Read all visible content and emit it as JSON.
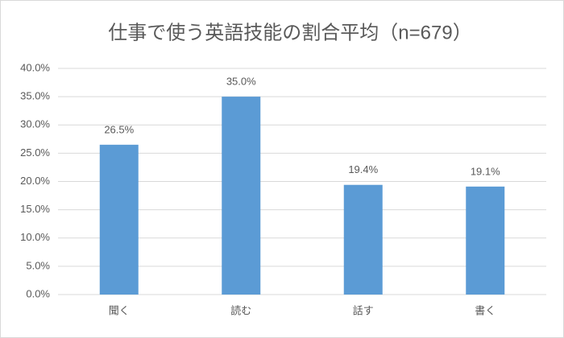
{
  "chart_data": {
    "type": "bar",
    "title": "仕事で使う英語技能の割合平均（n=679）",
    "categories": [
      "聞く",
      "読む",
      "話す",
      "書く"
    ],
    "values": [
      26.5,
      35.0,
      19.4,
      19.1
    ],
    "value_labels": [
      "26.5%",
      "35.0%",
      "19.4%",
      "19.1%"
    ],
    "color": "#5b9bd5",
    "ylim": [
      0,
      40
    ],
    "yticks": [
      {
        "value": 0,
        "label": "0.0%"
      },
      {
        "value": 5,
        "label": "5.0%"
      },
      {
        "value": 10,
        "label": "10.0%"
      },
      {
        "value": 15,
        "label": "15.0%"
      },
      {
        "value": 20,
        "label": "20.0%"
      },
      {
        "value": 25,
        "label": "25.0%"
      },
      {
        "value": 30,
        "label": "30.0%"
      },
      {
        "value": 35,
        "label": "35.0%"
      },
      {
        "value": 40,
        "label": "40.0%"
      }
    ],
    "grid": true
  }
}
